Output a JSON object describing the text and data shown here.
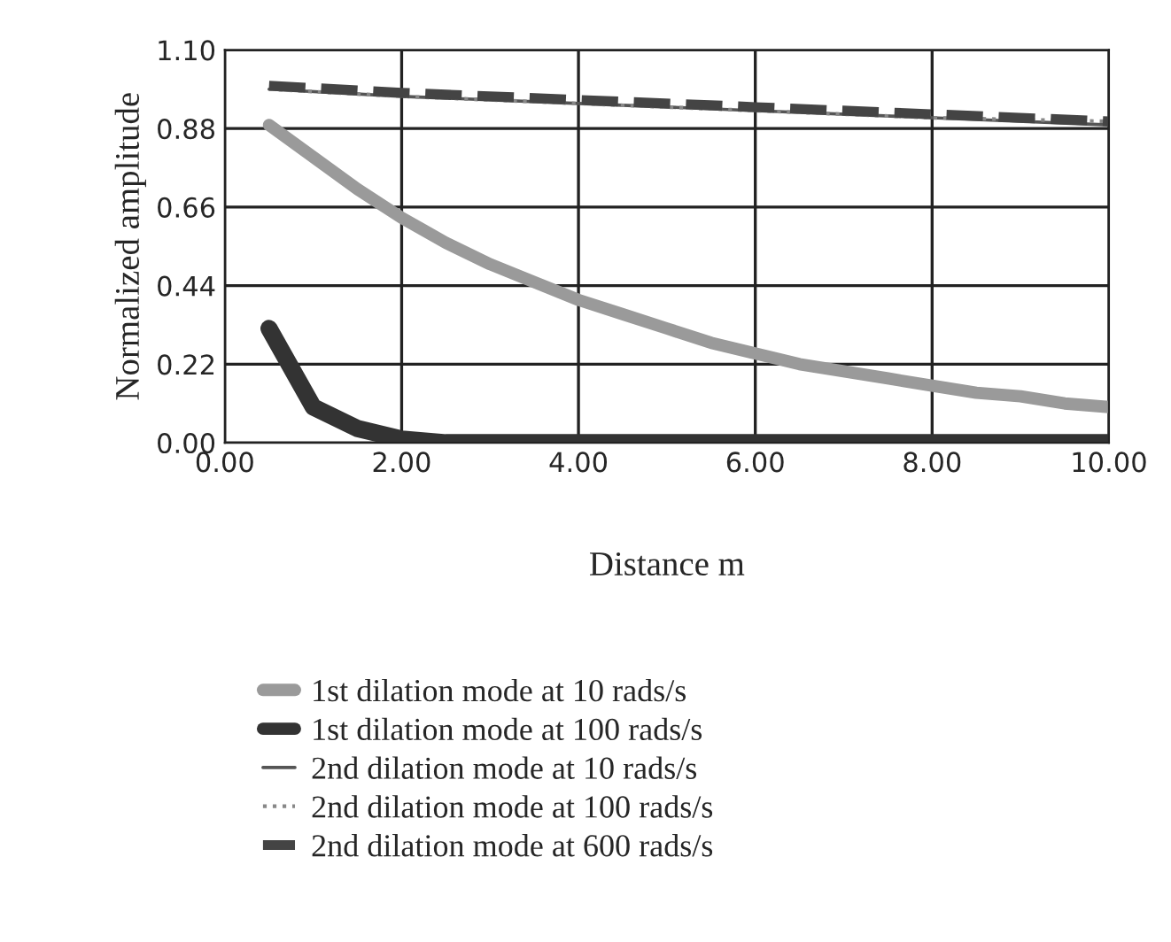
{
  "chart_data": {
    "type": "line",
    "xlabel": "Distance m",
    "ylabel": "Normalized amplitude",
    "xlim": [
      0,
      10
    ],
    "ylim": [
      0,
      1.1
    ],
    "xticks": [
      {
        "value": 0,
        "label": "0.00"
      },
      {
        "value": 2,
        "label": "2.00"
      },
      {
        "value": 4,
        "label": "4.00"
      },
      {
        "value": 6,
        "label": "6.00"
      },
      {
        "value": 8,
        "label": "8.00"
      },
      {
        "value": 10,
        "label": "10.00"
      }
    ],
    "yticks": [
      {
        "value": 0,
        "label": "0.00"
      },
      {
        "value": 0.22,
        "label": "0.22"
      },
      {
        "value": 0.44,
        "label": "0.44"
      },
      {
        "value": 0.66,
        "label": "0.66"
      },
      {
        "value": 0.88,
        "label": "0.88"
      },
      {
        "value": 1.1,
        "label": "1.10"
      }
    ],
    "grid": true,
    "legend": "bottom",
    "marker": "none",
    "x": [
      0.5,
      1,
      1.5,
      2,
      2.5,
      3,
      3.5,
      4,
      4.5,
      5,
      5.5,
      6,
      6.5,
      7,
      7.5,
      8,
      8.5,
      9,
      9.5,
      10
    ],
    "series": [
      {
        "name": "1st dilation mode at 10 rads/s",
        "color": "#9a9a9a",
        "line_style": "solid",
        "values": [
          0.89,
          0.8,
          0.71,
          0.63,
          0.56,
          0.5,
          0.45,
          0.4,
          0.36,
          0.32,
          0.28,
          0.25,
          0.22,
          0.2,
          0.18,
          0.16,
          0.14,
          0.13,
          0.11,
          0.1
        ]
      },
      {
        "name": "1st dilation mode at 100 rads/s",
        "color": "#333333",
        "line_style": "solid",
        "values": [
          0.32,
          0.1,
          0.04,
          0.01,
          0,
          0,
          0,
          0,
          0,
          0,
          0,
          0,
          0,
          0,
          0,
          0,
          0,
          0,
          0,
          0
        ]
      },
      {
        "name": "2nd dilation mode at 10 rads/s",
        "color": "#555555",
        "line_style": "solid",
        "x": [
          0.5,
          2,
          4,
          6,
          8,
          10
        ],
        "values": [
          0.99,
          0.97,
          0.95,
          0.93,
          0.91,
          0.89
        ]
      },
      {
        "name": "2nd dilation mode at 100 rads/s",
        "color": "#888888",
        "line_style": "dotted",
        "x": [
          0.5,
          2,
          4,
          6,
          8,
          10
        ],
        "values": [
          0.99,
          0.97,
          0.95,
          0.93,
          0.91,
          0.9
        ]
      },
      {
        "name": "2nd dilation mode at 600 rads/s",
        "color": "#444444",
        "line_style": "dashed",
        "x": [
          0.5,
          2,
          4,
          6,
          8,
          10
        ],
        "values": [
          1.0,
          0.98,
          0.96,
          0.94,
          0.92,
          0.9
        ]
      }
    ]
  }
}
